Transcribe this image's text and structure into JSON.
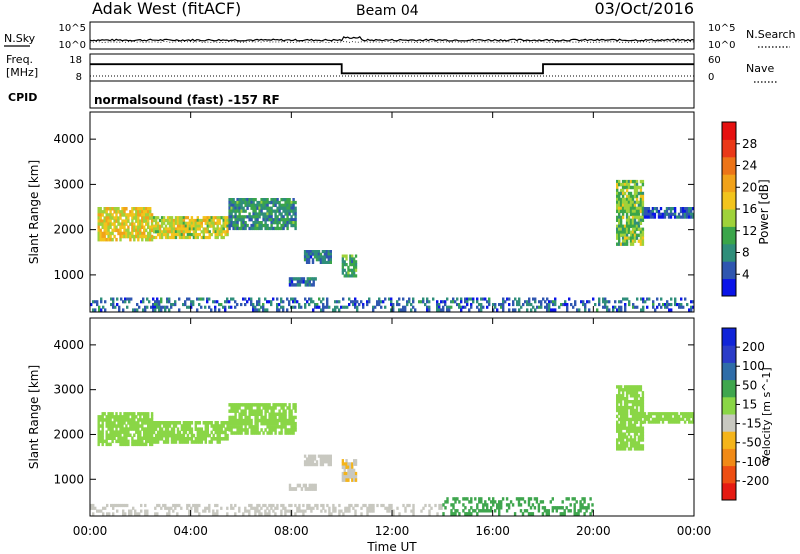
{
  "header": {
    "station": "Adak West (fitACF)",
    "beam": "Beam 04",
    "date": "03/Oct/2016"
  },
  "noise_panel": {
    "left_label": "N.Sky",
    "right_label": "N.Search",
    "left_ticks": [
      "10^5",
      "10^0"
    ],
    "right_ticks": [
      "10^5",
      "10^0"
    ]
  },
  "freq_panel": {
    "left_label_line1": "Freq.",
    "left_label_line2": "[MHz]",
    "right_label": "Nave",
    "left_ticks": [
      "18",
      "8"
    ],
    "right_ticks": [
      "60",
      "0"
    ],
    "freq_steps": [
      {
        "t_start": 0,
        "t_end": 10,
        "level": 14.6
      },
      {
        "t_start": 10,
        "t_end": 18,
        "level": 10.8
      },
      {
        "t_start": 18,
        "t_end": 24,
        "level": 14.6
      }
    ],
    "nave_level": 10
  },
  "cpid": {
    "label": "CPID",
    "text": "normalsound (fast) -157 RF"
  },
  "colors": {
    "power": [
      "#0a14e8",
      "#2f56b0",
      "#2f8e7a",
      "#3aa54a",
      "#9fd23a",
      "#f2c41c",
      "#f1a21a",
      "#ec7418",
      "#ea3818",
      "#e61010"
    ],
    "velocity": [
      "#e51a12",
      "#ee4e12",
      "#f18a16",
      "#f4b41a",
      "#c8c8c0",
      "#8ad646",
      "#3fa64e",
      "#2f6da8",
      "#2b3cc8",
      "#1024d8"
    ]
  },
  "chart_data": [
    {
      "type": "heatmap",
      "name": "power",
      "xlabel": "",
      "ylabel": "Slant Range [km]",
      "xlim": [
        0,
        24
      ],
      "ylim": [
        180,
        4600
      ],
      "yticks": [
        1000,
        2000,
        3000,
        4000
      ],
      "colorbar": {
        "label": "Power [dB]",
        "range": [
          0,
          32
        ],
        "ticks": [
          4,
          8,
          12,
          16,
          20,
          24,
          28
        ]
      },
      "regions": [
        {
          "t_start": 0.3,
          "t_end": 2.5,
          "r_min": 1750,
          "r_max": 2500,
          "value": 17
        },
        {
          "t_start": 2.5,
          "t_end": 5.5,
          "r_min": 1800,
          "r_max": 2300,
          "value": 16
        },
        {
          "t_start": 5.5,
          "t_end": 8.2,
          "r_min": 2000,
          "r_max": 2700,
          "value": 9
        },
        {
          "t_start": 8.5,
          "t_end": 9.6,
          "r_min": 1250,
          "r_max": 1550,
          "value": 7
        },
        {
          "t_start": 7.9,
          "t_end": 9.0,
          "r_min": 750,
          "r_max": 950,
          "value": 6
        },
        {
          "t_start": 10.0,
          "t_end": 10.6,
          "r_min": 950,
          "r_max": 1450,
          "value": 10
        },
        {
          "t_start": 20.9,
          "t_end": 22.0,
          "r_min": 1650,
          "r_max": 3100,
          "value": 13
        },
        {
          "t_start": 22.0,
          "t_end": 24.0,
          "r_min": 2250,
          "r_max": 2500,
          "value": 5
        },
        {
          "t_start": 0,
          "t_end": 24,
          "r_min": 200,
          "r_max": 500,
          "value": 6
        }
      ]
    },
    {
      "type": "heatmap",
      "name": "velocity",
      "xlabel": "Time UT",
      "ylabel": "Slant Range [km]",
      "xlim": [
        0,
        24
      ],
      "ylim": [
        180,
        4600
      ],
      "yticks": [
        1000,
        2000,
        3000,
        4000
      ],
      "xticks": [
        "00:00",
        "04:00",
        "08:00",
        "12:00",
        "16:00",
        "20:00",
        "00:00"
      ],
      "colorbar": {
        "label": "Velocity [m s^-1]",
        "ticks": [
          "-200",
          "-100",
          "-50",
          "-15",
          "15",
          "50",
          "100",
          "200"
        ]
      },
      "regions": [
        {
          "t_start": 0.3,
          "t_end": 2.5,
          "r_min": 1750,
          "r_max": 2500,
          "value": 0
        },
        {
          "t_start": 2.5,
          "t_end": 5.5,
          "r_min": 1800,
          "r_max": 2300,
          "value": 0
        },
        {
          "t_start": 5.5,
          "t_end": 8.2,
          "r_min": 2000,
          "r_max": 2700,
          "value": 0
        },
        {
          "t_start": 8.5,
          "t_end": 9.6,
          "r_min": 1300,
          "r_max": 1550,
          "value": -40
        },
        {
          "t_start": 7.9,
          "t_end": 9.0,
          "r_min": 750,
          "r_max": 900,
          "value": -35
        },
        {
          "t_start": 10.0,
          "t_end": 10.6,
          "r_min": 950,
          "r_max": 1450,
          "value": -45
        },
        {
          "t_start": 20.9,
          "t_end": 22.0,
          "r_min": 1650,
          "r_max": 3100,
          "value": 0
        },
        {
          "t_start": 22.0,
          "t_end": 24.0,
          "r_min": 2250,
          "r_max": 2500,
          "value": 0
        },
        {
          "t_start": 0,
          "t_end": 14,
          "r_min": 200,
          "r_max": 450,
          "value": -30
        },
        {
          "t_start": 14,
          "t_end": 20,
          "r_min": 200,
          "r_max": 600,
          "value": 30
        }
      ]
    }
  ]
}
